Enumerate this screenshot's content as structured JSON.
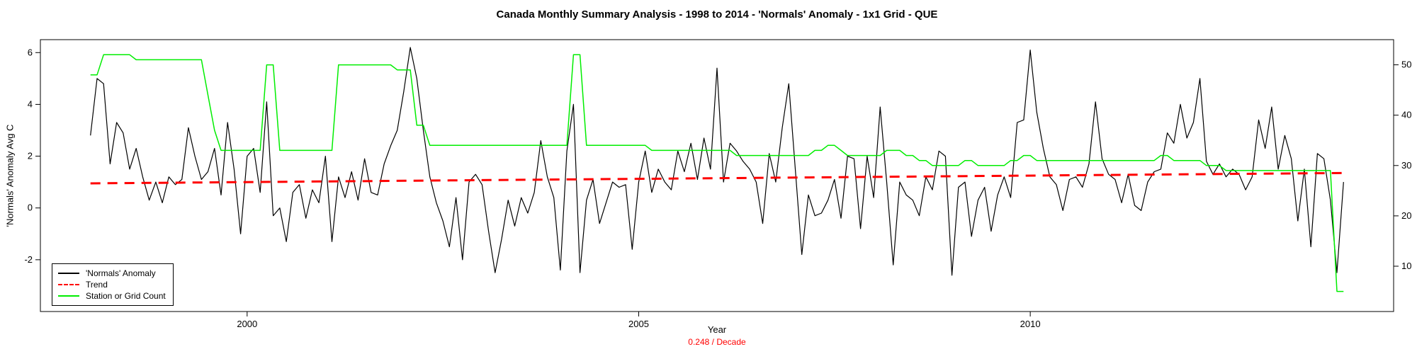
{
  "title": "Canada Monthly Summary Analysis - 1998 to 2014 - 'Normals' Anomaly - 1x1 Grid - QUE",
  "x_axis_title": "Year",
  "y_axis_title_left": "'Normals' Anomaly Avg C",
  "trend_rate_label": "0.248  / Decade",
  "colors": {
    "anomaly": "#000000",
    "trend": "#FF0000",
    "station_count": "#00EE00",
    "trend_text": "#FF0000"
  },
  "legend": {
    "items": [
      {
        "label": "'Normals' Anomaly",
        "color": "#000000",
        "style": "solid"
      },
      {
        "label": "Trend",
        "color": "#FF0000",
        "style": "dashed"
      },
      {
        "label": "Station or Grid Count",
        "color": "#00EE00",
        "style": "solid"
      }
    ]
  },
  "chart_data": {
    "type": "line",
    "title": "Canada Monthly Summary Analysis - 1998 to 2014 - 'Normals' Anomaly - 1x1 Grid - QUE",
    "xlabel": "Year",
    "ylabel_left": "'Normals' Anomaly Avg C",
    "ylabel_right": "Station or Grid Count",
    "grid": false,
    "legend_position": "bottom-left",
    "x_start_year": 1998,
    "x_step_months": 1,
    "xlim": [
      1997.36,
      2014.64
    ],
    "ylim_left": [
      -4.0,
      6.5
    ],
    "ylim_right": [
      1,
      55
    ],
    "x_ticks": [
      2000,
      2005,
      2010
    ],
    "y_ticks_left": [
      -2,
      0,
      2,
      4,
      6
    ],
    "y_ticks_right": [
      10,
      20,
      30,
      40,
      50
    ],
    "series": [
      {
        "name": "'Normals' Anomaly",
        "axis": "left",
        "color": "#000000",
        "width": 1.2,
        "dash": null,
        "values": [
          2.8,
          5.0,
          4.8,
          1.7,
          3.3,
          2.9,
          1.5,
          2.3,
          1.2,
          0.3,
          1.0,
          0.2,
          1.2,
          0.9,
          1.1,
          3.1,
          2.0,
          1.1,
          1.4,
          2.3,
          0.5,
          3.3,
          1.5,
          -1.0,
          2.0,
          2.3,
          0.6,
          4.1,
          -0.3,
          0.0,
          -1.3,
          0.6,
          0.9,
          -0.4,
          0.7,
          0.2,
          2.0,
          -1.3,
          1.2,
          0.4,
          1.4,
          0.3,
          1.9,
          0.6,
          0.5,
          1.7,
          2.4,
          3.0,
          4.5,
          6.2,
          5.0,
          3.0,
          1.2,
          0.2,
          -0.5,
          -1.5,
          0.4,
          -2.0,
          1.0,
          1.3,
          0.9,
          -0.9,
          -2.5,
          -1.2,
          0.3,
          -0.7,
          0.4,
          -0.2,
          0.6,
          2.6,
          1.2,
          0.4,
          -2.4,
          2.2,
          4.0,
          -2.5,
          0.3,
          1.1,
          -0.6,
          0.2,
          1.0,
          0.8,
          0.9,
          -1.6,
          1.0,
          2.2,
          0.6,
          1.5,
          1.0,
          0.7,
          2.2,
          1.4,
          2.5,
          1.1,
          2.7,
          1.5,
          5.4,
          1.0,
          2.5,
          2.2,
          1.8,
          1.5,
          1.0,
          -0.6,
          2.1,
          1.0,
          3.1,
          4.8,
          1.5,
          -1.8,
          0.5,
          -0.3,
          -0.2,
          0.3,
          1.1,
          -0.4,
          2.0,
          1.9,
          -0.8,
          2.0,
          0.4,
          3.9,
          1.0,
          -2.2,
          1.0,
          0.5,
          0.3,
          -0.3,
          1.2,
          0.7,
          2.2,
          2.0,
          -2.6,
          0.8,
          1.0,
          -1.1,
          0.3,
          0.8,
          -0.9,
          0.5,
          1.2,
          0.4,
          3.3,
          3.4,
          6.1,
          3.7,
          2.3,
          1.2,
          0.9,
          -0.1,
          1.1,
          1.2,
          0.8,
          1.7,
          4.1,
          1.9,
          1.3,
          1.1,
          0.2,
          1.3,
          0.1,
          -0.1,
          1.0,
          1.4,
          1.5,
          2.9,
          2.5,
          4.0,
          2.7,
          3.3,
          5.0,
          1.8,
          1.3,
          1.7,
          1.2,
          1.5,
          1.3,
          0.7,
          1.2,
          3.4,
          2.3,
          3.9,
          1.5,
          2.8,
          1.9,
          -0.5,
          1.5,
          -1.5,
          2.1,
          1.9,
          0.3,
          -2.5,
          1.0
        ]
      },
      {
        "name": "Trend",
        "axis": "left",
        "color": "#FF0000",
        "width": 3,
        "dash": "14,10",
        "trend": {
          "x0": 1998.0,
          "y0": 0.95,
          "x1": 2014.05,
          "y1": 1.35
        },
        "slope_per_decade": 0.248
      },
      {
        "name": "Station or Grid Count",
        "axis": "right",
        "color": "#00EE00",
        "width": 1.5,
        "dash": null,
        "values": [
          48,
          48,
          52,
          52,
          52,
          52,
          52,
          51,
          51,
          51,
          51,
          51,
          51,
          51,
          51,
          51,
          51,
          51,
          44,
          37,
          33,
          33,
          33,
          33,
          33,
          33,
          33,
          50,
          50,
          33,
          33,
          33,
          33,
          33,
          33,
          33,
          33,
          33,
          50,
          50,
          50,
          50,
          50,
          50,
          50,
          50,
          50,
          49,
          49,
          49,
          38,
          38,
          34,
          34,
          34,
          34,
          34,
          34,
          34,
          34,
          34,
          34,
          34,
          34,
          34,
          34,
          34,
          34,
          34,
          34,
          34,
          34,
          34,
          34,
          52,
          52,
          34,
          34,
          34,
          34,
          34,
          34,
          34,
          34,
          34,
          34,
          33,
          33,
          33,
          33,
          33,
          33,
          33,
          33,
          33,
          33,
          33,
          33,
          33,
          32,
          32,
          32,
          32,
          32,
          32,
          32,
          32,
          32,
          32,
          32,
          32,
          33,
          33,
          34,
          34,
          33,
          32,
          32,
          32,
          32,
          32,
          32,
          33,
          33,
          33,
          32,
          32,
          31,
          31,
          30,
          30,
          30,
          30,
          30,
          31,
          31,
          30,
          30,
          30,
          30,
          30,
          31,
          31,
          32,
          32,
          31,
          31,
          31,
          31,
          31,
          31,
          31,
          31,
          31,
          31,
          31,
          31,
          31,
          31,
          31,
          31,
          31,
          31,
          31,
          32,
          32,
          31,
          31,
          31,
          31,
          31,
          30,
          30,
          30,
          29,
          29,
          29,
          29,
          29,
          29,
          29,
          29,
          29,
          29,
          29,
          29,
          29,
          29,
          29,
          29,
          29,
          5,
          5
        ]
      }
    ]
  }
}
